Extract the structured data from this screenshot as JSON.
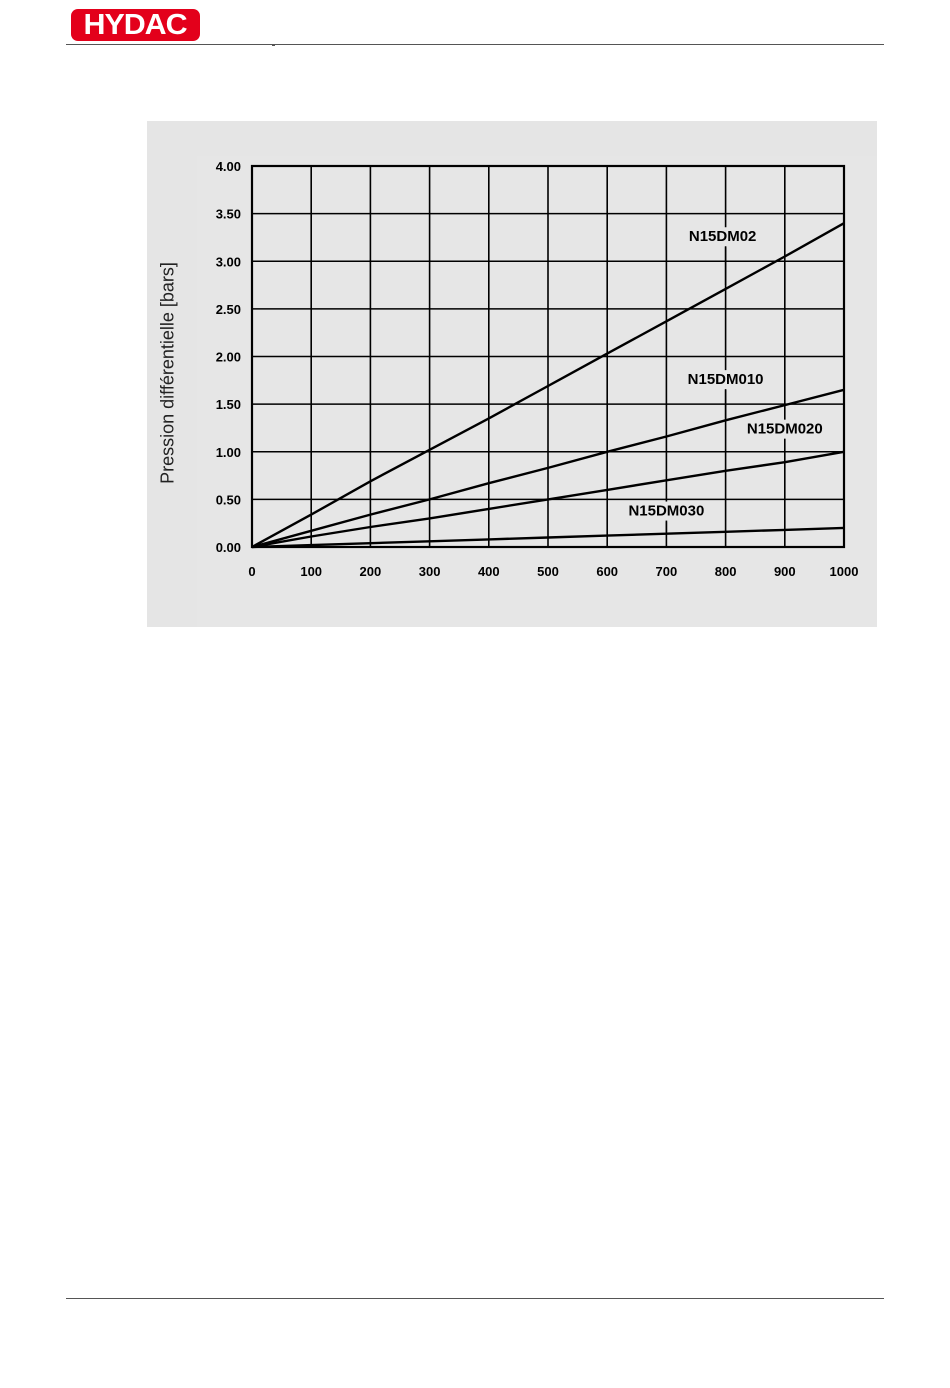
{
  "header": {
    "logo_text": "HYDAC",
    "brand_color": "#e3001b"
  },
  "chart_data": {
    "type": "line",
    "title": "",
    "xlabel": "",
    "ylabel": "Pression différentielle [bars]",
    "xlim": [
      0,
      1000
    ],
    "ylim": [
      0,
      4.0
    ],
    "grid": true,
    "x_ticks": [
      "0",
      "100",
      "200",
      "300",
      "400",
      "500",
      "600",
      "700",
      "800",
      "900",
      "1000"
    ],
    "y_ticks": [
      "0.00",
      "0.50",
      "1.00",
      "1.50",
      "2.00",
      "2.50",
      "3.00",
      "3.50",
      "4.00"
    ],
    "series": [
      {
        "name": "N15DM02",
        "x": [
          0,
          100,
          200,
          300,
          400,
          500,
          600,
          700,
          800,
          900,
          1000
        ],
        "y": [
          0,
          0.34,
          0.69,
          1.02,
          1.35,
          1.69,
          2.03,
          2.37,
          2.71,
          3.05,
          3.4
        ]
      },
      {
        "name": "N15DM010",
        "x": [
          0,
          100,
          200,
          300,
          400,
          500,
          600,
          700,
          800,
          900,
          1000
        ],
        "y": [
          0,
          0.17,
          0.34,
          0.5,
          0.67,
          0.83,
          1.0,
          1.16,
          1.33,
          1.49,
          1.65
        ]
      },
      {
        "name": "N15DM020",
        "x": [
          0,
          100,
          200,
          300,
          400,
          500,
          600,
          700,
          800,
          900,
          1000
        ],
        "y": [
          0,
          0.11,
          0.21,
          0.3,
          0.4,
          0.5,
          0.6,
          0.7,
          0.8,
          0.89,
          1.0
        ]
      },
      {
        "name": "N15DM030",
        "x": [
          0,
          100,
          200,
          300,
          400,
          500,
          600,
          700,
          800,
          900,
          1000
        ],
        "y": [
          0,
          0.02,
          0.04,
          0.06,
          0.08,
          0.1,
          0.12,
          0.14,
          0.16,
          0.18,
          0.2
        ]
      }
    ],
    "annotations": [
      {
        "text": "N15DM02",
        "x": 795,
        "y": 3.21,
        "leader_x": 800,
        "leader_to_y": 2.75
      },
      {
        "text": "N15DM010",
        "x": 800,
        "y": 1.71,
        "leader_x": 800,
        "leader_to_y": 1.35
      },
      {
        "text": "N15DM020",
        "x": 900,
        "y": 1.19,
        "leader_x": 900,
        "leader_to_y": 0.92
      },
      {
        "text": "N15DM030",
        "x": 700,
        "y": 0.33,
        "leader_x": 700,
        "leader_to_y": 0.16
      }
    ]
  }
}
